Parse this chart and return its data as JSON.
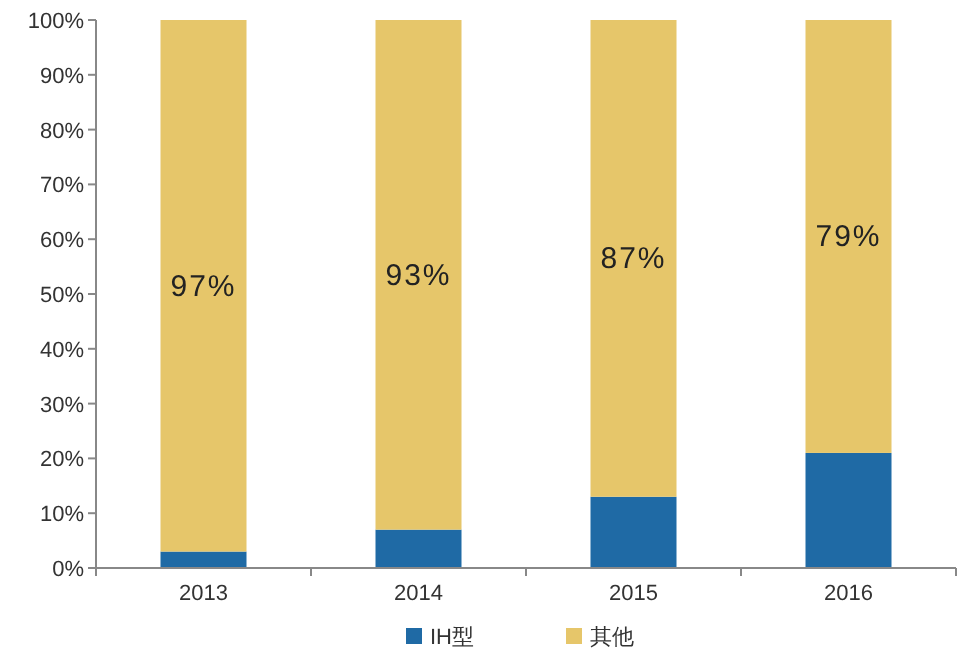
{
  "chart_data": {
    "type": "bar",
    "stacked": true,
    "categories": [
      "2013",
      "2014",
      "2015",
      "2016"
    ],
    "series": [
      {
        "name": "IH型",
        "color": "#1f6aa5",
        "values": [
          3,
          7,
          13,
          21
        ]
      },
      {
        "name": "其他",
        "color": "#e6c66a",
        "values": [
          97,
          93,
          87,
          79
        ],
        "value_labels": [
          "97%",
          "93%",
          "87%",
          "79%"
        ]
      }
    ],
    "ylim": [
      0,
      100
    ],
    "yticks": [
      {
        "value": 0,
        "label": "0%"
      },
      {
        "value": 10,
        "label": "10%"
      },
      {
        "value": 20,
        "label": "20%"
      },
      {
        "value": 30,
        "label": "30%"
      },
      {
        "value": 40,
        "label": "40%"
      },
      {
        "value": 50,
        "label": "50%"
      },
      {
        "value": 60,
        "label": "60%"
      },
      {
        "value": 70,
        "label": "70%"
      },
      {
        "value": 80,
        "label": "80%"
      },
      {
        "value": 90,
        "label": "90%"
      },
      {
        "value": 100,
        "label": "100%"
      }
    ],
    "legend": "bottom"
  }
}
